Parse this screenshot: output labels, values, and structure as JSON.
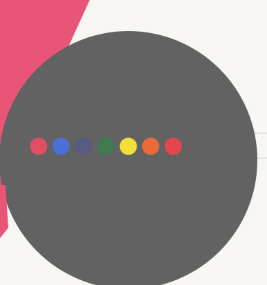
{
  "palette": {
    "background": "#f7f6f2",
    "pink_shape": "#e85577",
    "gray_circle": "#626262",
    "gray_circle_shadow": "#575757",
    "box_stroke": "#d6d4cf"
  },
  "dots": [
    {
      "name": "dot-red",
      "color": "#e04e63"
    },
    {
      "name": "dot-blue",
      "color": "#4c6fd8"
    },
    {
      "name": "dot-slate",
      "color": "#585a7f"
    },
    {
      "name": "dot-green",
      "color": "#3f7a52"
    },
    {
      "name": "dot-yellow",
      "color": "#f1df3a"
    },
    {
      "name": "dot-orange",
      "color": "#ea6b3a"
    },
    {
      "name": "dot-crimson",
      "color": "#e4464e"
    }
  ]
}
